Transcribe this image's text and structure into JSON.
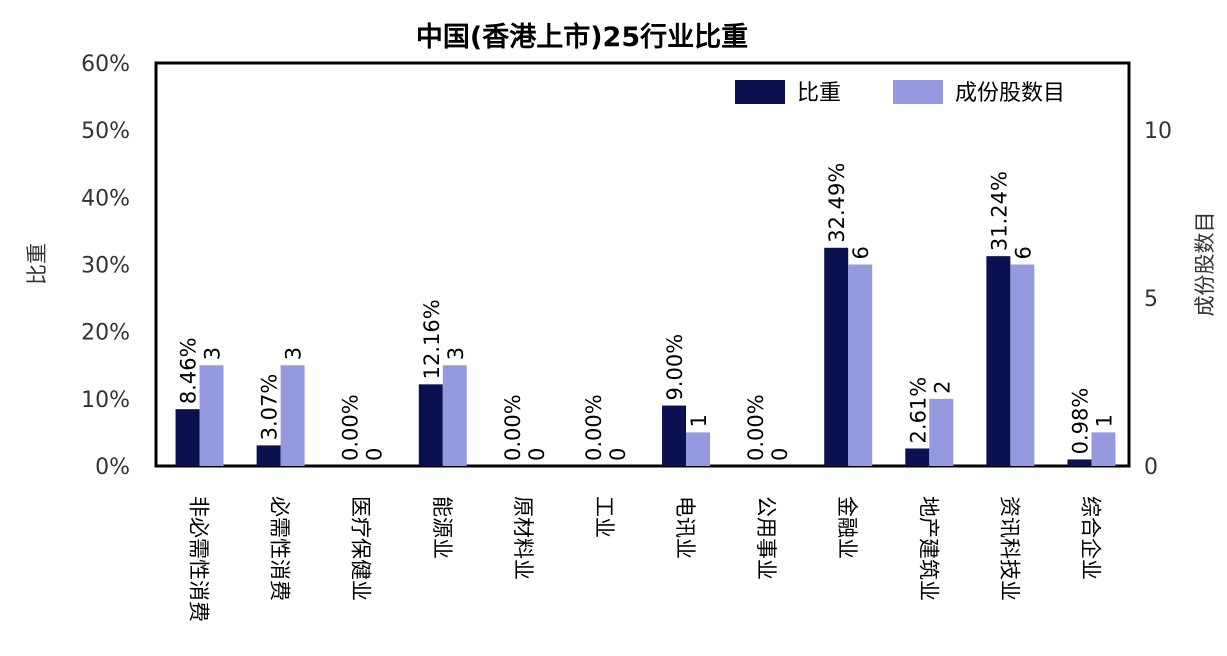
{
  "chart_data": {
    "type": "bar",
    "title": "中国(香港上市)25行业比重",
    "categories": [
      "非必需性消费",
      "必需性消费",
      "医疗保健业",
      "能源业",
      "原材料业",
      "工业",
      "电讯业",
      "公用事业",
      "金融业",
      "地产建筑业",
      "资讯科技业",
      "综合企业"
    ],
    "series": [
      {
        "name": "比重",
        "axis": "left",
        "color": "#0b1150",
        "values": [
          8.46,
          3.07,
          0.0,
          12.16,
          0.0,
          0.0,
          9.0,
          0.0,
          32.49,
          2.61,
          31.24,
          0.98
        ],
        "labels": [
          "8.46%",
          "3.07%",
          "0.00%",
          "12.16%",
          "0.00%",
          "0.00%",
          "9.00%",
          "0.00%",
          "32.49%",
          "2.61%",
          "31.24%",
          "0.98%"
        ]
      },
      {
        "name": "成份股数目",
        "axis": "right",
        "color": "#9599e0",
        "values": [
          3,
          3,
          0,
          3,
          0,
          0,
          1,
          0,
          6,
          2,
          6,
          1
        ],
        "labels": [
          "3",
          "3",
          "0",
          "3",
          "0",
          "0",
          "1",
          "0",
          "6",
          "2",
          "6",
          "1"
        ]
      }
    ],
    "ylabel": "比重",
    "y2label": "成份股数目",
    "ylim": [
      0,
      60
    ],
    "y2lim": [
      0,
      12
    ],
    "yticks": [
      "0%",
      "10%",
      "20%",
      "30%",
      "40%",
      "50%",
      "60%"
    ],
    "y2ticks": [
      "0",
      "5",
      "10"
    ],
    "y2tick_values": [
      0,
      5,
      10
    ],
    "legend_position": "top-right",
    "grid": false
  }
}
